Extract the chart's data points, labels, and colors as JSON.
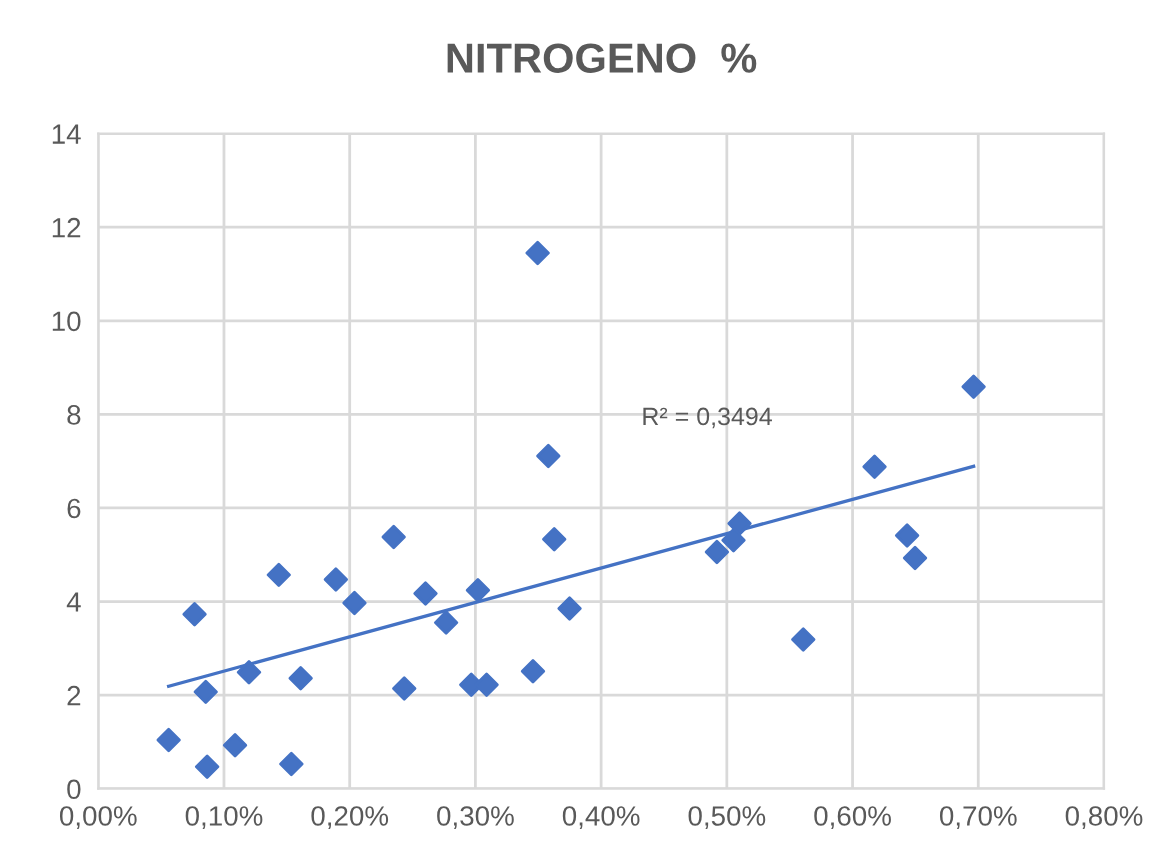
{
  "chart_data": {
    "type": "scatter",
    "title": "NITROGENO  %",
    "series": [
      {
        "color": "#4472c4",
        "marker": "diamond",
        "x": [
          0.056,
          0.0766,
          0.0855,
          0.0866,
          0.1088,
          0.1199,
          0.1436,
          0.1536,
          0.161,
          0.189,
          0.2038,
          0.235,
          0.2434,
          0.2603,
          0.2767,
          0.2967,
          0.302,
          0.3089,
          0.3458,
          0.3495,
          0.358,
          0.3627,
          0.3749,
          0.4921,
          0.5053,
          0.5101,
          0.5608,
          0.6175,
          0.6434,
          0.6497,
          0.6963
        ],
        "values": [
          1.04,
          3.73,
          2.07,
          0.47,
          0.93,
          2.49,
          4.57,
          0.53,
          2.36,
          4.47,
          3.97,
          5.38,
          2.14,
          4.17,
          3.55,
          2.22,
          4.24,
          2.22,
          2.51,
          11.45,
          7.11,
          5.33,
          3.85,
          5.06,
          5.31,
          5.67,
          3.19,
          6.88,
          5.41,
          4.93,
          8.59
        ]
      },
      {
        "type": "line",
        "color": "#4472c4",
        "marker": "none",
        "line_style": "solid",
        "x": [
          0.056,
          0.6963
        ],
        "values": [
          2.19,
          6.89
        ]
      }
    ],
    "annotations": [
      "R² = 0,3494"
    ],
    "xlim": [
      0,
      0.8
    ],
    "xticks": [
      {
        "value": 0,
        "label": "0,00%"
      },
      {
        "value": 0.1,
        "label": "0,10%"
      },
      {
        "value": 0.2,
        "label": "0,20%"
      },
      {
        "value": 0.3,
        "label": "0,30%"
      },
      {
        "value": 0.4,
        "label": "0,40%"
      },
      {
        "value": 0.5,
        "label": "0,50%"
      },
      {
        "value": 0.6,
        "label": "0,60%"
      },
      {
        "value": 0.7,
        "label": "0,70%"
      },
      {
        "value": 0.8,
        "label": "0,80%"
      }
    ],
    "ylim": [
      0,
      14
    ],
    "yticks": [
      0,
      2,
      4,
      6,
      8,
      10,
      12,
      14
    ],
    "grid": true,
    "legend": false
  }
}
